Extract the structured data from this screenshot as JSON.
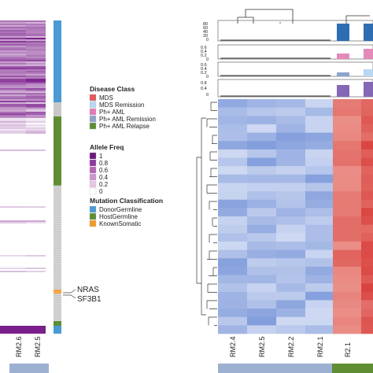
{
  "chart_data": [
    {
      "type": "heatmap",
      "panel": "left",
      "columns": [
        "RM2.6",
        "RM2.5"
      ],
      "annotations": [
        "NRAS",
        "SF3B1"
      ],
      "palette": {
        "high": "#7b1f8c",
        "mid": "#c77fc4",
        "low": "#ede0ee"
      }
    },
    {
      "type": "heatmap",
      "panel": "right",
      "columns": [
        "RM2.4",
        "RM2.5",
        "RM2.2",
        "RM2.1",
        "R2.1"
      ],
      "palette": {
        "remission": "#9bb0e0",
        "disease": "#e56b6b"
      },
      "top_bars": {
        "ticks_row1": [
          "80",
          "60",
          "40",
          "20",
          "0"
        ],
        "ticks_row2": [
          "0.6",
          "0.4",
          "0.2",
          "0"
        ],
        "ticks_row3": [
          "0.6",
          "0.4",
          "0.2",
          "0"
        ],
        "ticks_row4": [
          "0.8",
          "0.4",
          "0"
        ]
      }
    }
  ],
  "legend": {
    "disease_class": {
      "title": "Disease Class",
      "items": [
        {
          "label": "MDS",
          "color": "#e05a5a"
        },
        {
          "label": "MDS Remission",
          "color": "#b9d7f2"
        },
        {
          "label": "Ph+ AML",
          "color": "#e27ab8"
        },
        {
          "label": "Ph+ AML Remission",
          "color": "#8ea4cc"
        },
        {
          "label": "Ph+ AML Relapse",
          "color": "#5e8d34"
        }
      ]
    },
    "allele_freq": {
      "title": "Allele Freq",
      "items": [
        {
          "label": "1",
          "color": "#6b1a7e"
        },
        {
          "label": "0.8",
          "color": "#8f3a9c"
        },
        {
          "label": "0.6",
          "color": "#b565b5"
        },
        {
          "label": "0.4",
          "color": "#cf93cd"
        },
        {
          "label": "0.2",
          "color": "#e7c6e5"
        },
        {
          "label": "0",
          "color": "#ffffff"
        }
      ]
    },
    "mutation_classification": {
      "title": "Mutation Classification",
      "items": [
        {
          "label": "DonorGermline",
          "color": "#4b9ad3"
        },
        {
          "label": "HostGermline",
          "color": "#5e8d34"
        },
        {
          "label": "KnownSomatic",
          "color": "#ef9a2a"
        }
      ]
    }
  }
}
